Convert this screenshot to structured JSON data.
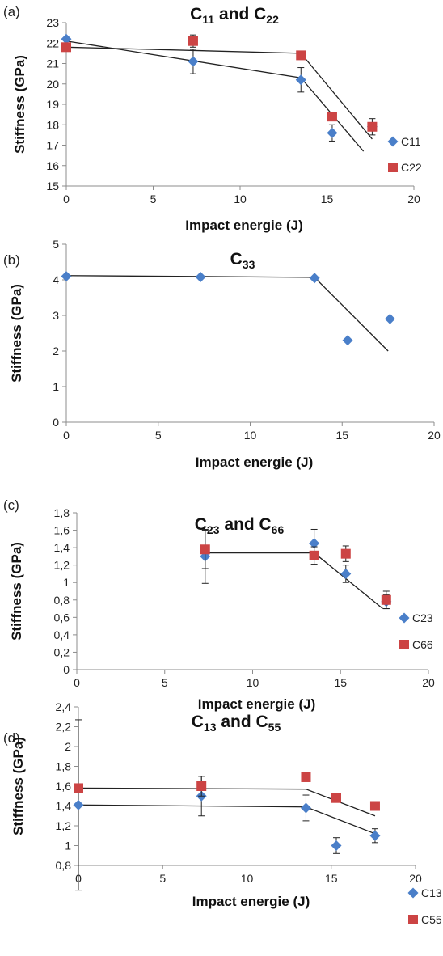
{
  "chart_data": [
    {
      "type": "scatter",
      "panel_label": "(a)",
      "title": {
        "base": "C",
        "parts": [
          {
            "sub": "11"
          },
          {
            "text": " and C"
          },
          {
            "sub": "22"
          }
        ]
      },
      "xlabel": "Impact energie (J)",
      "ylabel": "Stiffness (GPa)",
      "xlim": [
        0,
        20
      ],
      "ylim": [
        15,
        23
      ],
      "x_ticks": [
        0,
        5,
        10,
        15,
        20
      ],
      "y_ticks": [
        15,
        16,
        17,
        18,
        19,
        20,
        21,
        22,
        23
      ],
      "x_tick_labels": [
        "0",
        "5",
        "10",
        "15",
        "20"
      ],
      "y_tick_labels": [
        "15",
        "16",
        "17",
        "18",
        "19",
        "20",
        "21",
        "22",
        "23"
      ],
      "legend_position": "right",
      "series": [
        {
          "name": "C11",
          "marker": "diamond",
          "color": "#4a7fc9",
          "x": [
            0,
            7.3,
            13.5,
            15.3,
            17.6
          ],
          "y": [
            22.2,
            21.1,
            20.2,
            17.6,
            17.9
          ],
          "err": [
            0,
            0.6,
            0.6,
            0.4,
            0
          ],
          "fit": [
            [
              0,
              22.1
            ],
            [
              13.5,
              20.3
            ],
            [
              17.1,
              16.7
            ]
          ]
        },
        {
          "name": "C22",
          "marker": "square",
          "color": "#cc4444",
          "x": [
            0,
            7.3,
            13.5,
            15.3,
            17.6
          ],
          "y": [
            21.8,
            22.1,
            21.4,
            18.4,
            17.9
          ],
          "err": [
            0,
            0.3,
            0,
            0,
            0.4
          ],
          "fit": [
            [
              0,
              21.8
            ],
            [
              13.5,
              21.5
            ],
            [
              17.6,
              17.3
            ]
          ]
        }
      ]
    },
    {
      "type": "scatter",
      "panel_label": "(b)",
      "title": {
        "base": "C",
        "parts": [
          {
            "sub": "33"
          }
        ]
      },
      "xlabel": "Impact energie (J)",
      "ylabel": "Stiffness (GPa)",
      "xlim": [
        0,
        20
      ],
      "ylim": [
        0,
        5
      ],
      "x_ticks": [
        0,
        5,
        10,
        15,
        20
      ],
      "y_ticks": [
        0,
        1,
        2,
        3,
        4,
        5
      ],
      "x_tick_labels": [
        "0",
        "5",
        "10",
        "15",
        "20"
      ],
      "y_tick_labels": [
        "0",
        "1",
        "2",
        "3",
        "4",
        "5"
      ],
      "legend_position": "none",
      "series": [
        {
          "name": "",
          "marker": "diamond",
          "color": "#4a7fc9",
          "x": [
            0,
            7.3,
            13.5,
            15.3,
            17.6
          ],
          "y": [
            4.1,
            4.08,
            4.05,
            2.3,
            2.9
          ],
          "err": [
            0,
            0,
            0,
            0,
            0
          ],
          "fit": [
            [
              0,
              4.12
            ],
            [
              13.5,
              4.07
            ],
            [
              17.5,
              2.0
            ]
          ]
        }
      ]
    },
    {
      "type": "scatter",
      "panel_label": "(c)",
      "title": {
        "base": "C",
        "parts": [
          {
            "sub": "23"
          },
          {
            "text": " and C"
          },
          {
            "sub": "66"
          }
        ]
      },
      "xlabel": "Impact energie (J)",
      "ylabel": "Stiffness (GPa)",
      "xlim": [
        0,
        20
      ],
      "ylim": [
        0,
        1.8
      ],
      "x_ticks": [
        0,
        5,
        10,
        15,
        20
      ],
      "y_ticks": [
        0,
        0.2,
        0.4,
        0.6,
        0.8,
        1.0,
        1.2,
        1.4,
        1.6,
        1.8
      ],
      "x_tick_labels": [
        "0",
        "5",
        "10",
        "15",
        "20"
      ],
      "y_tick_labels": [
        "0",
        "0,2",
        "0,4",
        "0,6",
        "0,8",
        "1",
        "1,2",
        "1,4",
        "1,6",
        "1,8"
      ],
      "legend_position": "right",
      "series": [
        {
          "name": "C23",
          "marker": "diamond",
          "color": "#4a7fc9",
          "x": [
            7.3,
            13.5,
            15.3,
            17.6
          ],
          "y": [
            1.3,
            1.45,
            1.1,
            0.78
          ],
          "err": [
            0.31,
            0.16,
            0.1,
            0.08
          ],
          "fit": [
            [
              7.3,
              1.34
            ],
            [
              13.5,
              1.34
            ],
            [
              17.4,
              0.7
            ]
          ]
        },
        {
          "name": "C66",
          "marker": "square",
          "color": "#cc4444",
          "x": [
            7.3,
            13.5,
            15.3,
            17.6
          ],
          "y": [
            1.38,
            1.31,
            1.33,
            0.8
          ],
          "err": [
            0.22,
            0.1,
            0.09,
            0.1
          ],
          "fit": []
        }
      ]
    },
    {
      "type": "scatter",
      "panel_label": "(d)",
      "title": {
        "base": "C",
        "parts": [
          {
            "sub": "13"
          },
          {
            "text": " and C"
          },
          {
            "sub": "55"
          }
        ]
      },
      "xlabel": "Impact energie (J)",
      "ylabel": "Stiffness (GPa)",
      "xlim": [
        0,
        20
      ],
      "ylim": [
        0.8,
        2.4
      ],
      "x_ticks": [
        0,
        5,
        10,
        15,
        20
      ],
      "y_ticks": [
        0.8,
        1.0,
        1.2,
        1.4,
        1.6,
        1.8,
        2.0,
        2.2,
        2.4
      ],
      "x_tick_labels": [
        "0",
        "5",
        "10",
        "15",
        "20"
      ],
      "y_tick_labels": [
        "0,8",
        "1",
        "1,2",
        "1,4",
        "1,6",
        "1,8",
        "2",
        "2,2",
        "2,4"
      ],
      "legend_position": "right",
      "series": [
        {
          "name": "C13",
          "marker": "diamond",
          "color": "#4a7fc9",
          "x": [
            0,
            7.3,
            13.5,
            15.3,
            17.6
          ],
          "y": [
            1.41,
            1.5,
            1.38,
            1.0,
            1.1
          ],
          "err": [
            0.86,
            0.2,
            0.13,
            0.08,
            0.07
          ],
          "fit": [
            [
              0,
              1.41
            ],
            [
              13.5,
              1.39
            ],
            [
              17.6,
              1.12
            ]
          ]
        },
        {
          "name": "C55",
          "marker": "square",
          "color": "#cc4444",
          "x": [
            0,
            7.3,
            13.5,
            15.3,
            17.6
          ],
          "y": [
            1.58,
            1.6,
            1.69,
            1.48,
            1.4
          ],
          "err": [
            0,
            0.1,
            0,
            0,
            0
          ],
          "fit": [
            [
              0,
              1.58
            ],
            [
              13.5,
              1.57
            ],
            [
              17.6,
              1.3
            ]
          ]
        }
      ]
    }
  ]
}
